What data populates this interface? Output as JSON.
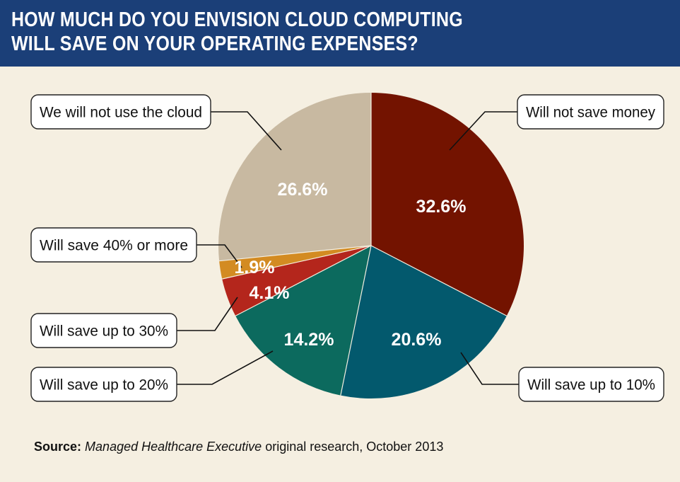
{
  "chart_data": {
    "type": "pie",
    "title": "HOW MUCH DO YOU ENVISION CLOUD COMPUTING WILL SAVE ON YOUR OPERATING EXPENSES?",
    "title_lines": [
      "HOW MUCH DO YOU ENVISION CLOUD COMPUTING",
      "WILL SAVE ON YOUR OPERATING EXPENSES?"
    ],
    "slices": [
      {
        "label": "Will not save money",
        "value": 32.6,
        "display": "32.6%",
        "color": "#731300"
      },
      {
        "label": "Will save up to 10%",
        "value": 20.6,
        "display": "20.6%",
        "color": "#03596d"
      },
      {
        "label": "Will save up to 20%",
        "value": 14.2,
        "display": "14.2%",
        "color": "#0c6a5e"
      },
      {
        "label": "Will save up to 30%",
        "value": 4.1,
        "display": "4.1%",
        "color": "#b4261c"
      },
      {
        "label": "Will save 40% or more",
        "value": 1.9,
        "display": "1.9%",
        "color": "#d38b22"
      },
      {
        "label": "We will not use the cloud",
        "value": 26.6,
        "display": "26.6%",
        "color": "#c8b9a1"
      }
    ]
  },
  "source": {
    "label": "Source:",
    "publication": "Managed Healthcare Executive",
    "rest": " original research, October 2013"
  },
  "colors": {
    "header": "#1b3f78",
    "background": "#f5efe1"
  }
}
